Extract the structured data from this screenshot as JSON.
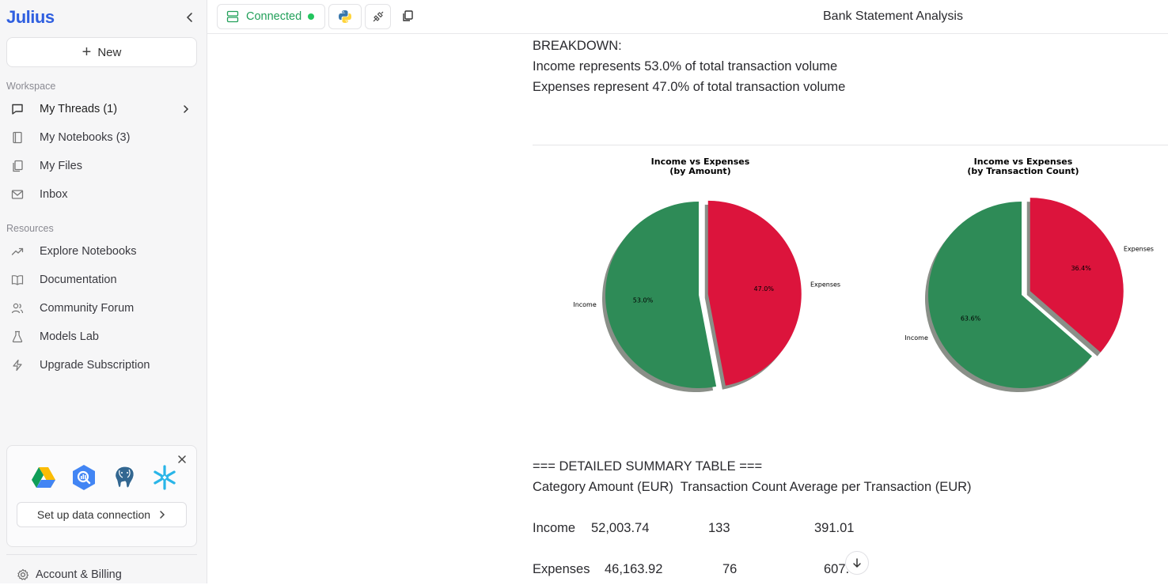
{
  "sidebar": {
    "logo": "Julius",
    "new_label": "New",
    "workspace_label": "Workspace",
    "workspace_items": [
      {
        "label": "My Threads (1)",
        "icon": "chat-bubble-icon"
      },
      {
        "label": "My Notebooks (3)",
        "icon": "notebook-icon"
      },
      {
        "label": "My Files",
        "icon": "files-icon"
      },
      {
        "label": "Inbox",
        "icon": "mail-icon"
      }
    ],
    "resources_label": "Resources",
    "resource_items": [
      {
        "label": "Explore Notebooks",
        "icon": "trending-icon"
      },
      {
        "label": "Documentation",
        "icon": "book-icon"
      },
      {
        "label": "Community Forum",
        "icon": "users-icon"
      },
      {
        "label": "Models Lab",
        "icon": "flask-icon"
      },
      {
        "label": "Upgrade Subscription",
        "icon": "lightning-icon"
      }
    ],
    "data_connection": {
      "button_label": "Set up data connection",
      "logos": [
        "google-drive-icon",
        "bigquery-icon",
        "postgresql-icon",
        "snowflake-icon"
      ]
    },
    "account_label": "Account & Billing"
  },
  "topbar": {
    "connected_label": "Connected",
    "title": "Bank Statement Analysis"
  },
  "content": {
    "breakdown_heading": "BREAKDOWN:",
    "income_line": "Income represents 53.0% of total transaction volume",
    "expenses_line": "Expenses represent 47.0% of total transaction volume",
    "table_heading": "=== DETAILED SUMMARY TABLE ===",
    "table_header": "Category Amount (EUR)  Transaction Count Average per Transaction (EUR)",
    "rows": [
      {
        "category": "Income",
        "amount": "52,003.74",
        "count": "133",
        "average": "391.01"
      },
      {
        "category": "Expenses",
        "amount": "46,163.92",
        "count": "76",
        "average": "607."
      }
    ]
  },
  "colors": {
    "income": "#2e8b57",
    "expenses": "#dc143c",
    "shadow": "#8a8f88",
    "accent": "#2f5fe0",
    "connected": "#22a05a"
  },
  "chart_data": [
    {
      "type": "pie",
      "title": "Income vs Expenses\n(by Amount)",
      "title_lines": [
        "Income vs Expenses",
        "(by Amount)"
      ],
      "categories": [
        "Income",
        "Expenses"
      ],
      "values": [
        53.0,
        47.0
      ],
      "value_labels": [
        "53.0%",
        "47.0%"
      ],
      "explode": "Expenses",
      "shadow": true
    },
    {
      "type": "pie",
      "title": "Income vs Expenses\n(by Transaction Count)",
      "title_lines": [
        "Income vs Expenses",
        "(by Transaction Count)"
      ],
      "categories": [
        "Income",
        "Expenses"
      ],
      "values": [
        63.6,
        36.4
      ],
      "value_labels": [
        "63.6%",
        "36.4%"
      ],
      "explode": "Expenses",
      "shadow": true
    }
  ]
}
